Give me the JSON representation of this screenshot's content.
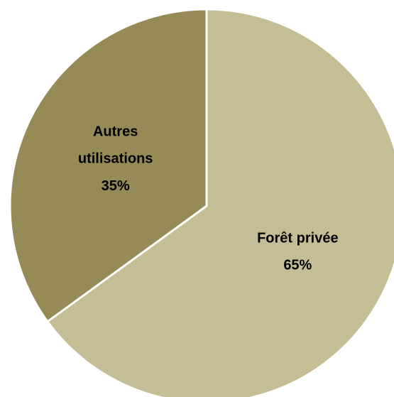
{
  "chart_data": {
    "type": "pie",
    "categories": [
      "Forêt privée",
      "Autres utilisations"
    ],
    "values": [
      65,
      35
    ],
    "value_labels": [
      "65%",
      "35%"
    ],
    "colors": [
      "#c5bd96",
      "#968a56"
    ]
  }
}
